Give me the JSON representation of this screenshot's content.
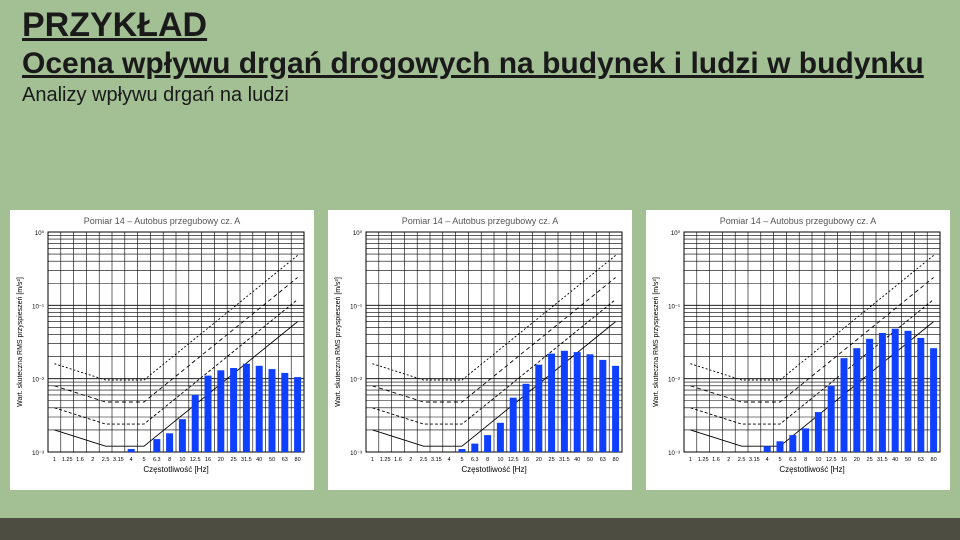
{
  "slide": {
    "background_color": "#a3c095",
    "footer_bar_color": "#4d4d41"
  },
  "header": {
    "title": "PRZYKŁAD",
    "title_fontsize": 34,
    "title_color": "#1a1a1a",
    "subtitle": "Ocena wpływu drgań drogowych na budynek i ludzi w budynku",
    "subtitle_fontsize": 30,
    "subtitle_color": "#1a1a1a",
    "subtext": "Analizy wpływu drgań na ludzi",
    "subtext_fontsize": 20,
    "subtext_color": "#1a1a1a"
  },
  "charts_common": {
    "type": "bar_with_log_grid_and_threshold_lines",
    "background_color": "#ffffff",
    "bar_color": "#1040ff",
    "grid_color": "#000000",
    "grid_weight": 0.6,
    "threshold_line_color": "#000000",
    "threshold_line_dash": "3 2",
    "xscale": "categorical_log",
    "yscale": "log",
    "ylim_exp": [
      -3,
      0
    ],
    "x_categories": [
      "1",
      "1.25",
      "1.6",
      "2",
      "2.5",
      "3.15",
      "4",
      "5",
      "6.3",
      "8",
      "10",
      "12.5",
      "16",
      "20",
      "25",
      "31.5",
      "40",
      "50",
      "63",
      "80"
    ],
    "x_label": "Częstotliwość [Hz]",
    "y_label": "Wart. skuteczna RMS przyspieszeń [m/s²]",
    "label_fontsize": 8,
    "tick_fontsize": 6,
    "bar_width_ratio": 0.55
  },
  "threshold_lines": [
    {
      "dash": "none",
      "pts": [
        [
          0,
          0.002
        ],
        [
          4,
          0.0012
        ],
        [
          7,
          0.0012
        ],
        [
          19,
          0.06
        ]
      ]
    },
    {
      "dash": "3 2",
      "pts": [
        [
          0,
          0.004
        ],
        [
          4,
          0.0024
        ],
        [
          7,
          0.0024
        ],
        [
          19,
          0.12
        ]
      ]
    },
    {
      "dash": "4 3",
      "pts": [
        [
          0,
          0.008
        ],
        [
          4,
          0.0048
        ],
        [
          7,
          0.0048
        ],
        [
          19,
          0.24
        ]
      ]
    },
    {
      "dash": "2 2",
      "pts": [
        [
          0,
          0.016
        ],
        [
          4,
          0.0096
        ],
        [
          7,
          0.0096
        ],
        [
          19,
          0.48
        ]
      ]
    }
  ],
  "charts": [
    {
      "title": "Pomiar 14 – Autobus przegubowy cz. A",
      "values": [
        0,
        0,
        0,
        0,
        0,
        0,
        0.0011,
        0.001,
        0.0015,
        0.0018,
        0.0028,
        0.006,
        0.011,
        0.013,
        0.014,
        0.016,
        0.015,
        0.0135,
        0.012,
        0.0105
      ]
    },
    {
      "title": "Pomiar 14 – Autobus przegubowy cz. A",
      "values": [
        0,
        0,
        0,
        0,
        0,
        0,
        0.0008,
        0.0011,
        0.0013,
        0.0017,
        0.0025,
        0.0055,
        0.0085,
        0.0155,
        0.022,
        0.024,
        0.023,
        0.0215,
        0.018,
        0.015
      ]
    },
    {
      "title": "Pomiar 14 – Autobus przegubowy cz. A",
      "values": [
        0,
        0,
        0,
        0,
        0,
        0,
        0.0012,
        0.0014,
        0.0017,
        0.0021,
        0.0035,
        0.008,
        0.019,
        0.026,
        0.035,
        0.042,
        0.048,
        0.045,
        0.036,
        0.026
      ]
    }
  ]
}
